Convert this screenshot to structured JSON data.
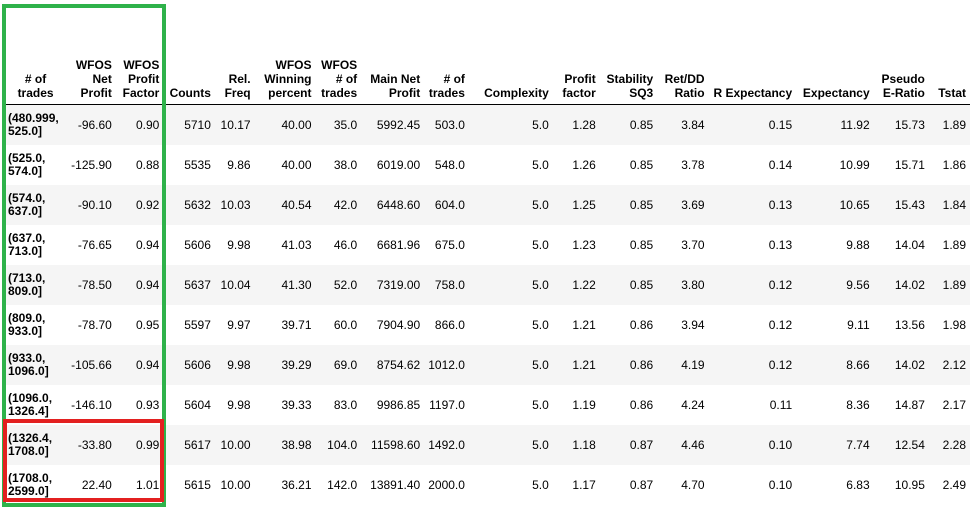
{
  "index_name": "# of trades",
  "columns": [
    "WFOS Net Profit",
    "WFOS Profit Factor",
    "Counts",
    "Rel. Freq",
    "WFOS Winning percent",
    "WFOS # of trades",
    "Main Net Profit",
    "# of trades",
    "Complexity",
    "Profit factor",
    "Stability SQ3",
    "Ret/DD Ratio",
    "R Expectancy",
    "Expectancy",
    "Pseudo E-Ratio",
    "Tstat"
  ],
  "rows": [
    {
      "index": "(480.999, 525.0]",
      "values": [
        "-96.60",
        "0.90",
        "5710",
        "10.17",
        "40.00",
        "35.0",
        "5992.45",
        "503.0",
        "5.0",
        "1.28",
        "0.85",
        "3.84",
        "0.15",
        "11.92",
        "15.73",
        "1.89"
      ]
    },
    {
      "index": "(525.0, 574.0]",
      "values": [
        "-125.90",
        "0.88",
        "5535",
        "9.86",
        "40.00",
        "38.0",
        "6019.00",
        "548.0",
        "5.0",
        "1.26",
        "0.85",
        "3.78",
        "0.14",
        "10.99",
        "15.71",
        "1.86"
      ]
    },
    {
      "index": "(574.0, 637.0]",
      "values": [
        "-90.10",
        "0.92",
        "5632",
        "10.03",
        "40.54",
        "42.0",
        "6448.60",
        "604.0",
        "5.0",
        "1.25",
        "0.85",
        "3.69",
        "0.13",
        "10.65",
        "15.43",
        "1.84"
      ]
    },
    {
      "index": "(637.0, 713.0]",
      "values": [
        "-76.65",
        "0.94",
        "5606",
        "9.98",
        "41.03",
        "46.0",
        "6681.96",
        "675.0",
        "5.0",
        "1.23",
        "0.85",
        "3.70",
        "0.13",
        "9.88",
        "14.04",
        "1.89"
      ]
    },
    {
      "index": "(713.0, 809.0]",
      "values": [
        "-78.50",
        "0.94",
        "5637",
        "10.04",
        "41.30",
        "52.0",
        "7319.00",
        "758.0",
        "5.0",
        "1.22",
        "0.85",
        "3.80",
        "0.12",
        "9.56",
        "14.02",
        "1.89"
      ]
    },
    {
      "index": "(809.0, 933.0]",
      "values": [
        "-78.70",
        "0.95",
        "5597",
        "9.97",
        "39.71",
        "60.0",
        "7904.90",
        "866.0",
        "5.0",
        "1.21",
        "0.86",
        "3.94",
        "0.12",
        "9.11",
        "13.56",
        "1.98"
      ]
    },
    {
      "index": "(933.0, 1096.0]",
      "values": [
        "-105.66",
        "0.94",
        "5606",
        "9.98",
        "39.29",
        "69.0",
        "8754.62",
        "1012.0",
        "5.0",
        "1.21",
        "0.86",
        "4.19",
        "0.12",
        "8.66",
        "14.02",
        "2.12"
      ]
    },
    {
      "index": "(1096.0, 1326.4]",
      "values": [
        "-146.10",
        "0.93",
        "5604",
        "9.98",
        "39.33",
        "83.0",
        "9986.85",
        "1197.0",
        "5.0",
        "1.19",
        "0.86",
        "4.24",
        "0.11",
        "8.36",
        "14.87",
        "2.17"
      ]
    },
    {
      "index": "(1326.4, 1708.0]",
      "values": [
        "-33.80",
        "0.99",
        "5617",
        "10.00",
        "38.98",
        "104.0",
        "11598.60",
        "1492.0",
        "5.0",
        "1.18",
        "0.87",
        "4.46",
        "0.10",
        "7.74",
        "12.54",
        "2.28"
      ]
    },
    {
      "index": "(1708.0, 2599.0]",
      "values": [
        "22.40",
        "1.01",
        "5615",
        "10.00",
        "36.21",
        "142.0",
        "13891.40",
        "2000.0",
        "5.0",
        "1.17",
        "0.87",
        "4.70",
        "0.10",
        "6.83",
        "10.95",
        "2.49"
      ]
    }
  ],
  "colors": {
    "green_highlight": "#2eb24a",
    "red_highlight": "#e32020",
    "stripe": "#f5f5f5"
  }
}
